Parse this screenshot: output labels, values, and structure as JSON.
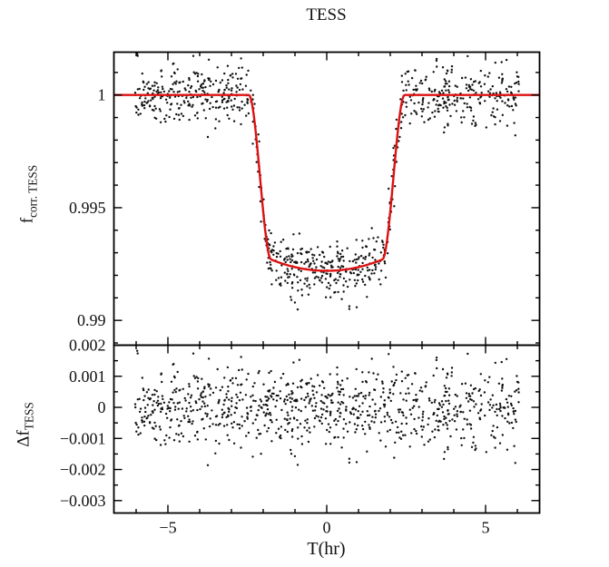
{
  "figure": {
    "title": "TESS",
    "xlabel": "T(hr)",
    "background": "#ffffff",
    "axis_color": "#000000",
    "text_color": "#111111",
    "accent_color": "#dd1111"
  },
  "chart_data": [
    {
      "type": "scatter",
      "panel": "top",
      "name": "tess-light-curve",
      "title": "TESS",
      "ylabel": "f_corr. TESS",
      "ylabel_main": "f",
      "ylabel_sub": "corr. TESS",
      "xlim": [
        -6.7,
        6.7
      ],
      "ylim": [
        0.9889,
        1.0019
      ],
      "yticks": [
        0.99,
        0.995,
        1
      ],
      "ytick_labels": [
        "0.99",
        "0.995",
        "1"
      ],
      "y_minor_step": 0.001,
      "xticks": [
        -5,
        0,
        5
      ],
      "xtick_labels": [
        "−5",
        "0",
        "5"
      ],
      "x_minor_step": 1,
      "grid": false,
      "legend": false,
      "marker_color": "#111111",
      "marker_radius_px": 1.2,
      "n_points": 920,
      "x_data_range": [
        -6.05,
        6.05
      ],
      "noise_sigma": 0.00065,
      "seed": 20240613,
      "series": [
        {
          "name": "transit-model",
          "type": "line",
          "color": "#dd1111",
          "baseline": 1.0,
          "depth_center": 0.0078,
          "depth_edge": 0.0073,
          "flat_half_width_hr": 1.75,
          "total_half_width_hr": 2.45,
          "flux_minimum": 0.9922
        }
      ]
    },
    {
      "type": "scatter",
      "panel": "bottom",
      "name": "tess-residuals",
      "ylabel": "Δf_TESS",
      "ylabel_main": "Δf",
      "ylabel_sub": "TESS",
      "xlabel": "T(hr)",
      "xlim": [
        -6.7,
        6.7
      ],
      "ylim": [
        -0.0034,
        0.002
      ],
      "yticks": [
        -0.003,
        -0.002,
        -0.001,
        0,
        0.001,
        0.002
      ],
      "ytick_labels": [
        "−0.003",
        "−0.002",
        "−0.001",
        "0",
        "0.001",
        "0.002"
      ],
      "y_minor_step": 0.0005,
      "xticks": [
        -5,
        0,
        5
      ],
      "xtick_labels": [
        "−5",
        "0",
        "5"
      ],
      "x_minor_step": 1,
      "grid": false,
      "legend": false,
      "marker_color": "#111111",
      "marker_radius_px": 1.2,
      "residual_of": "tess-light-curve",
      "residual_mean": 0,
      "noise_sigma": 0.00065
    }
  ]
}
